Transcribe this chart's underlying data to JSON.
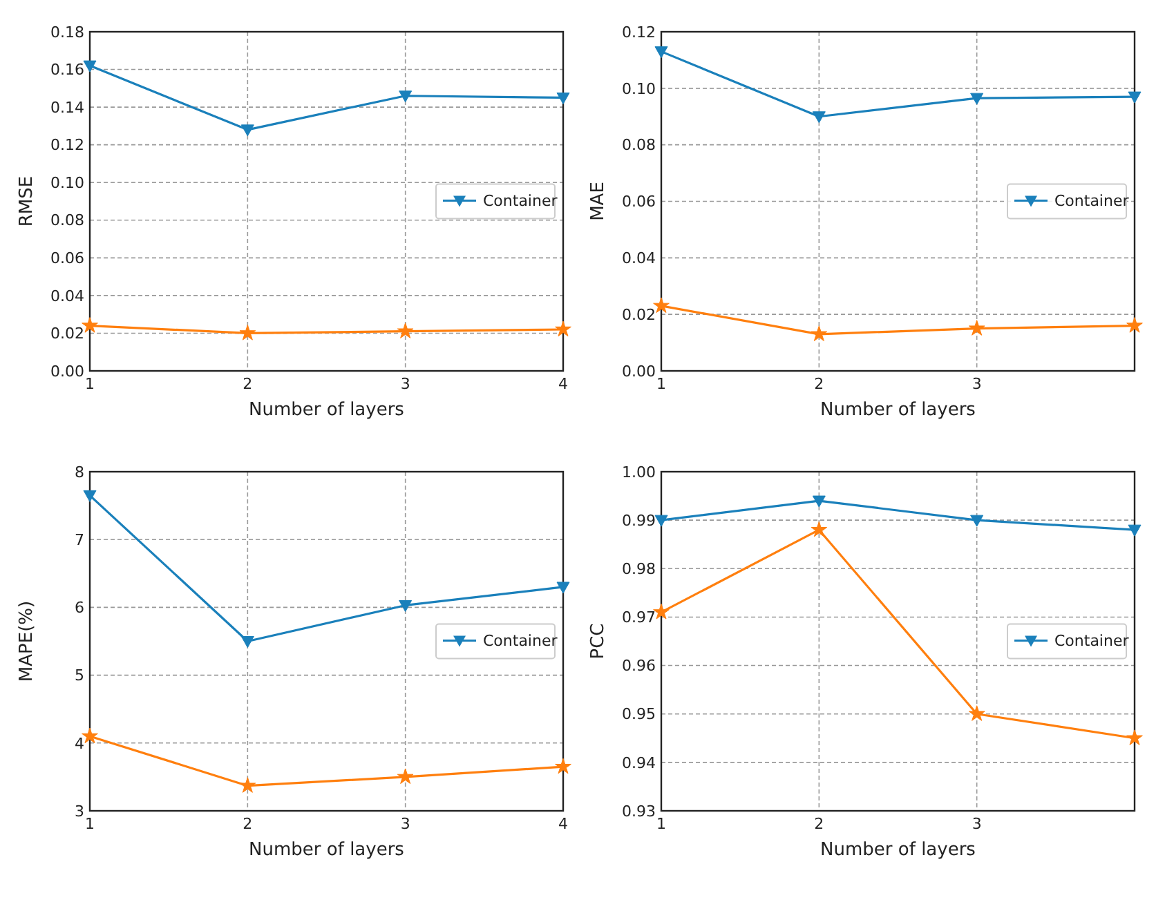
{
  "chart_data": [
    {
      "type": "line",
      "xlabel": "Number of layers",
      "ylabel": "RMSE",
      "x": [
        1,
        2,
        3,
        4
      ],
      "xlim": [
        1,
        4
      ],
      "xticks": [
        1,
        2,
        3,
        4
      ],
      "ylim": [
        0,
        0.18
      ],
      "yticks": [
        {
          "value": 0,
          "label": "0.00"
        },
        0.02,
        0.04,
        0.06,
        0.08,
        {
          "value": 0.1,
          "label": "0.10"
        },
        0.12,
        0.14,
        0.16,
        0.18
      ],
      "grid": true,
      "legend": "right",
      "series": [
        {
          "name": "Container",
          "color": "#1a80bb",
          "marker": "triangle",
          "values": [
            0.162,
            0.128,
            0.146,
            0.145
          ]
        },
        {
          "color": "#ff7f0e",
          "marker": "star",
          "values": [
            0.024,
            0.02,
            0.021,
            0.022
          ]
        }
      ]
    },
    {
      "type": "line",
      "xlabel": "Number of layers",
      "ylabel": "MAE",
      "x": [
        1,
        2,
        3,
        4
      ],
      "xlim": [
        1,
        4
      ],
      "xticks": [
        1,
        2,
        3
      ],
      "ylim": [
        0,
        0.12
      ],
      "yticks": [
        {
          "value": 0,
          "label": "0.00"
        },
        0.02,
        0.04,
        0.06,
        0.08,
        {
          "value": 0.1,
          "label": "0.10"
        },
        0.12
      ],
      "grid": true,
      "legend": "right",
      "series": [
        {
          "name": "Container",
          "color": "#1a80bb",
          "marker": "triangle",
          "values": [
            0.113,
            0.09,
            0.0965,
            0.097
          ]
        },
        {
          "color": "#ff7f0e",
          "marker": "star",
          "values": [
            0.023,
            0.013,
            0.015,
            0.016
          ]
        }
      ]
    },
    {
      "type": "line",
      "xlabel": "Number of layers",
      "ylabel": "MAPE(%)",
      "x": [
        1,
        2,
        3,
        4
      ],
      "xlim": [
        1,
        4
      ],
      "xticks": [
        1,
        2,
        3,
        4
      ],
      "ylim": [
        3,
        8
      ],
      "yticks": [
        3,
        4,
        5,
        6,
        7,
        8
      ],
      "grid": true,
      "legend": "right",
      "series": [
        {
          "name": "Container",
          "color": "#1a80bb",
          "marker": "triangle",
          "values": [
            7.65,
            5.5,
            6.03,
            6.3
          ]
        },
        {
          "color": "#ff7f0e",
          "marker": "star",
          "values": [
            4.1,
            3.37,
            3.5,
            3.65
          ]
        }
      ]
    },
    {
      "type": "line",
      "xlabel": "Number of layers",
      "ylabel": "PCC",
      "x": [
        1,
        2,
        3,
        4
      ],
      "xlim": [
        1,
        4
      ],
      "xticks": [
        1,
        2,
        3
      ],
      "ylim": [
        0.93,
        1.0
      ],
      "yticks": [
        0.93,
        0.94,
        0.95,
        0.96,
        0.97,
        0.98,
        0.99,
        {
          "value": 1,
          "label": "1.00"
        }
      ],
      "grid": true,
      "legend": "right",
      "series": [
        {
          "name": "Container",
          "color": "#1a80bb",
          "marker": "triangle",
          "values": [
            0.99,
            0.994,
            0.99,
            0.988
          ]
        },
        {
          "color": "#ff7f0e",
          "marker": "star",
          "values": [
            0.971,
            0.988,
            0.95,
            0.945
          ]
        }
      ]
    }
  ]
}
